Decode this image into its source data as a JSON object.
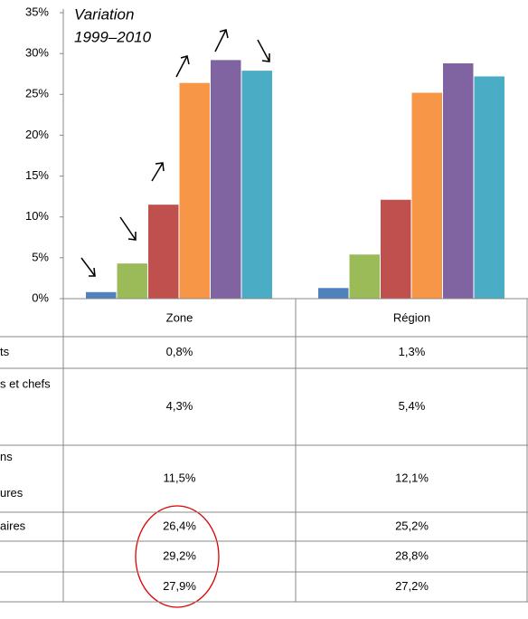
{
  "chart_data": {
    "type": "bar",
    "annotation": [
      "Variation",
      "1999–2010"
    ],
    "categories": [
      "Zone",
      "Région"
    ],
    "series": [
      {
        "name": "ts",
        "color": "#4f81bd",
        "values": [
          0.8,
          1.3
        ],
        "value_labels": [
          "0,8%",
          "1,3%"
        ]
      },
      {
        "name": "s et chefs",
        "color": "#9bbb59",
        "values": [
          4.3,
          5.4
        ],
        "value_labels": [
          "4,3%",
          "5,4%"
        ]
      },
      {
        "name": "ns\nures",
        "color": "#c0504d",
        "values": [
          11.5,
          12.1
        ],
        "value_labels": [
          "11,5%",
          "12,1%"
        ]
      },
      {
        "name": "aires",
        "color": "#f79646",
        "values": [
          26.4,
          25.2
        ],
        "value_labels": [
          "26,4%",
          "25,2%"
        ]
      },
      {
        "name": null,
        "color": "#8064a2",
        "values": [
          29.2,
          28.8
        ],
        "value_labels": [
          "29,2%",
          "28,8%"
        ]
      },
      {
        "name": null,
        "color": "#4bacc6",
        "values": [
          27.9,
          27.2
        ],
        "value_labels": [
          "27,9%",
          "27,2%"
        ]
      }
    ],
    "ylim": [
      0,
      35
    ],
    "yticks": [
      {
        "value": 0,
        "label": "0%"
      },
      {
        "value": 5,
        "label": "5%"
      },
      {
        "value": 10,
        "label": "10%"
      },
      {
        "value": 15,
        "label": "15%"
      },
      {
        "value": 20,
        "label": "20%"
      },
      {
        "value": 25,
        "label": "25%"
      },
      {
        "value": 30,
        "label": "30%"
      },
      {
        "value": 35,
        "label": "35%"
      }
    ],
    "grid": false
  }
}
